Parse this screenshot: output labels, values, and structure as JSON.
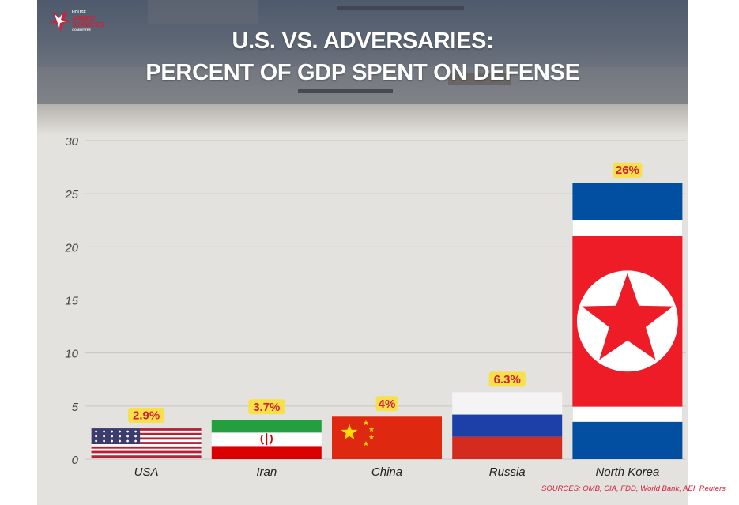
{
  "header": {
    "org_small": "HOUSE",
    "org_armed": "ARMED",
    "org_services": "SERVICES",
    "org_committee": "COMMITTEE",
    "title_line1": "U.S. VS. ADVERSARIES:",
    "title_line2": "PERCENT OF GDP SPENT ON DEFENSE"
  },
  "footer": {
    "sources": "SOURCES: OMB, CIA, FDD, World Bank, AEI, Reuters"
  },
  "colors": {
    "label_badge": "#f7e04a",
    "label_text": "#d0203a",
    "grid": "#c9c6c1",
    "axis_text": "#444444"
  },
  "chart_data": {
    "type": "bar",
    "title": "U.S. VS. ADVERSARIES: PERCENT OF GDP SPENT ON DEFENSE",
    "xlabel": "",
    "ylabel": "",
    "categories": [
      "USA",
      "Iran",
      "China",
      "Russia",
      "North Korea"
    ],
    "values": [
      2.9,
      3.7,
      4,
      6.3,
      26
    ],
    "data_labels": [
      "2.9%",
      "3.7%",
      "4%",
      "6.3%",
      "26%"
    ],
    "bar_fills": [
      "flag-usa",
      "flag-iran",
      "flag-china",
      "flag-russia",
      "flag-north-korea"
    ],
    "ylim": [
      0,
      30
    ],
    "yticks": [
      0,
      5,
      10,
      15,
      20,
      25,
      30
    ],
    "grid": true,
    "legend": "none"
  }
}
